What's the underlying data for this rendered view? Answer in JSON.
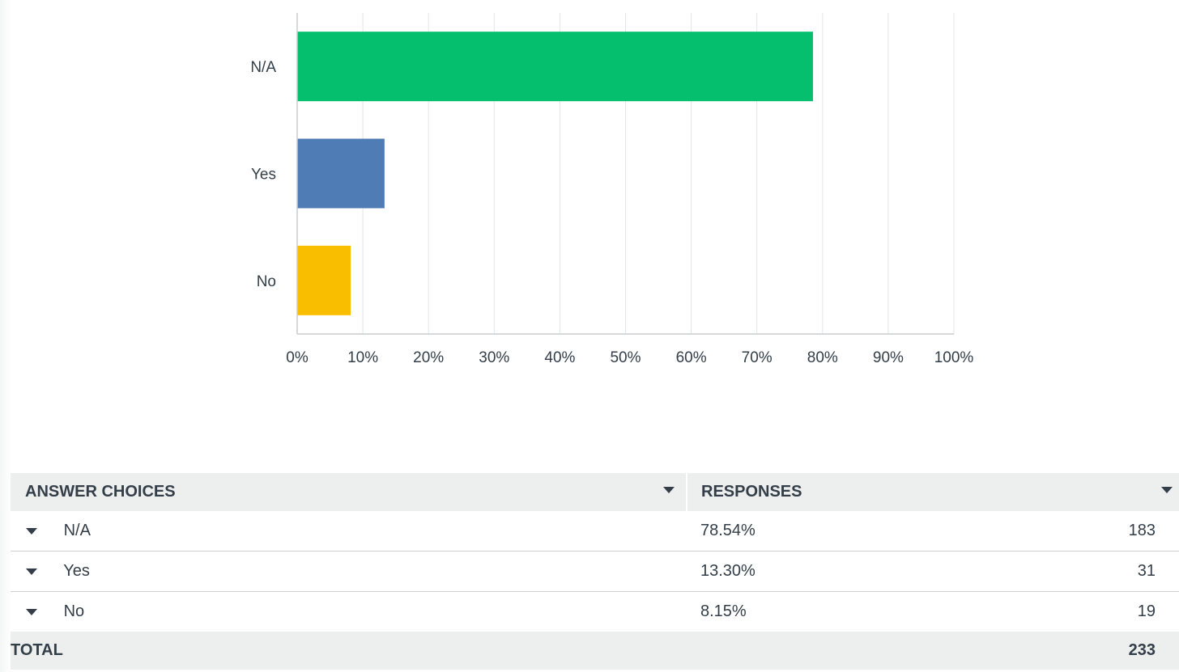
{
  "chart_data": {
    "type": "bar",
    "orientation": "horizontal",
    "categories": [
      "N/A",
      "Yes",
      "No"
    ],
    "values": [
      78.54,
      13.3,
      8.15
    ],
    "colors": [
      "#05bf6f",
      "#507cb6",
      "#f9be00"
    ],
    "xlim": [
      0,
      100
    ],
    "x_ticks": [
      "0%",
      "10%",
      "20%",
      "30%",
      "40%",
      "50%",
      "60%",
      "70%",
      "80%",
      "90%",
      "100%"
    ],
    "grid": true,
    "title": "",
    "xlabel": "",
    "ylabel": ""
  },
  "table": {
    "headers": {
      "choices": "ANSWER CHOICES",
      "responses": "RESPONSES"
    },
    "rows": [
      {
        "choice": "N/A",
        "percent": "78.54%",
        "count": "183"
      },
      {
        "choice": "Yes",
        "percent": "13.30%",
        "count": "31"
      },
      {
        "choice": "No",
        "percent": "8.15%",
        "count": "19"
      }
    ],
    "total_label": "TOTAL",
    "total_value": "233"
  },
  "icons": {
    "sort": "chevron-down-icon",
    "expand": "caret-down-icon"
  }
}
